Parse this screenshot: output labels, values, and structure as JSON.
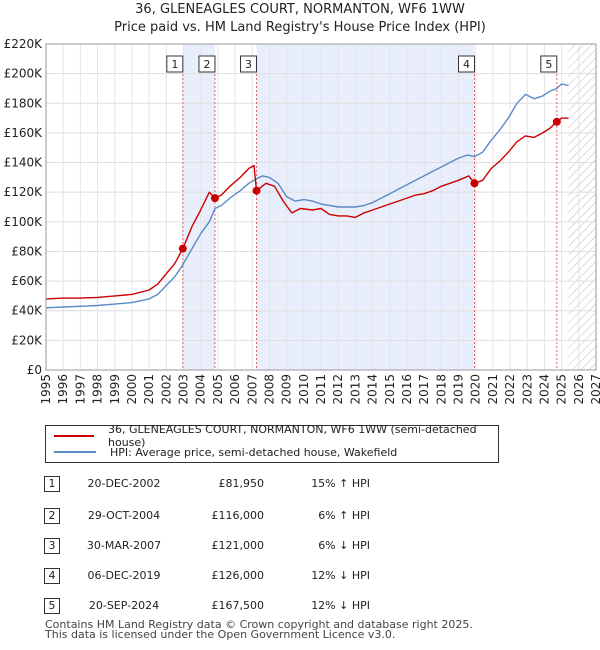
{
  "title": "36, GLENEAGLES COURT, NORMANTON, WF6 1WW",
  "subtitle": "Price paid vs. HM Land Registry's House Price Index (HPI)",
  "colors": {
    "property": "#cc0000",
    "hpi": "#5b8ac6",
    "shade": "#e8eefb",
    "vline": "#e06666"
  },
  "chart_data": {
    "type": "line",
    "xlim": [
      1995,
      2027
    ],
    "ylim": [
      0,
      220000
    ],
    "xticks": [
      1995,
      1996,
      1997,
      1998,
      1999,
      2000,
      2001,
      2002,
      2003,
      2004,
      2005,
      2006,
      2007,
      2008,
      2009,
      2010,
      2011,
      2012,
      2013,
      2014,
      2015,
      2016,
      2017,
      2018,
      2019,
      2020,
      2021,
      2022,
      2023,
      2024,
      2025,
      2026,
      2027
    ],
    "yticks": [
      0,
      20000,
      40000,
      60000,
      80000,
      100000,
      120000,
      140000,
      160000,
      180000,
      200000,
      220000
    ],
    "ytick_labels": [
      "£0",
      "£20K",
      "£40K",
      "£60K",
      "£80K",
      "£100K",
      "£120K",
      "£140K",
      "£160K",
      "£180K",
      "£200K",
      "£220K"
    ],
    "forecast_start": 2025.4,
    "series": [
      {
        "name": "36, GLENEAGLES COURT, NORMANTON, WF6 1WW (semi-detached house)",
        "points": [
          [
            1995.0,
            48000
          ],
          [
            1996.0,
            48500
          ],
          [
            1997.0,
            48500
          ],
          [
            1998.0,
            49000
          ],
          [
            1999.0,
            50000
          ],
          [
            2000.0,
            51000
          ],
          [
            2001.0,
            54000
          ],
          [
            2001.5,
            58000
          ],
          [
            2002.0,
            65000
          ],
          [
            2002.5,
            72000
          ],
          [
            2002.96,
            81950
          ],
          [
            2003.5,
            97000
          ],
          [
            2004.0,
            108000
          ],
          [
            2004.5,
            120000
          ],
          [
            2004.83,
            116000
          ],
          [
            2005.2,
            118000
          ],
          [
            2005.7,
            124000
          ],
          [
            2006.3,
            130000
          ],
          [
            2006.8,
            136000
          ],
          [
            2007.1,
            138000
          ],
          [
            2007.25,
            121000
          ],
          [
            2007.8,
            126000
          ],
          [
            2008.3,
            124000
          ],
          [
            2008.8,
            114000
          ],
          [
            2009.3,
            106000
          ],
          [
            2009.8,
            109000
          ],
          [
            2010.5,
            108000
          ],
          [
            2011.0,
            109000
          ],
          [
            2011.5,
            105000
          ],
          [
            2012.0,
            104000
          ],
          [
            2012.5,
            104000
          ],
          [
            2013.0,
            103000
          ],
          [
            2013.5,
            106000
          ],
          [
            2014.0,
            108000
          ],
          [
            2014.5,
            110000
          ],
          [
            2015.0,
            112000
          ],
          [
            2015.5,
            114000
          ],
          [
            2016.0,
            116000
          ],
          [
            2016.5,
            118000
          ],
          [
            2017.0,
            119000
          ],
          [
            2017.5,
            121000
          ],
          [
            2018.0,
            124000
          ],
          [
            2018.5,
            126000
          ],
          [
            2019.0,
            128000
          ],
          [
            2019.6,
            131000
          ],
          [
            2019.93,
            126000
          ],
          [
            2020.4,
            128000
          ],
          [
            2020.9,
            136000
          ],
          [
            2021.4,
            141000
          ],
          [
            2021.9,
            147000
          ],
          [
            2022.4,
            154000
          ],
          [
            2022.9,
            158000
          ],
          [
            2023.4,
            157000
          ],
          [
            2023.9,
            160000
          ],
          [
            2024.3,
            163000
          ],
          [
            2024.72,
            167500
          ],
          [
            2025.0,
            170000
          ],
          [
            2025.4,
            170000
          ]
        ]
      },
      {
        "name": "HPI: Average price, semi-detached house, Wakefield",
        "points": [
          [
            1995.0,
            42000
          ],
          [
            1996.0,
            42500
          ],
          [
            1997.0,
            43000
          ],
          [
            1998.0,
            43500
          ],
          [
            1999.0,
            44500
          ],
          [
            2000.0,
            45500
          ],
          [
            2001.0,
            48000
          ],
          [
            2001.5,
            51000
          ],
          [
            2002.0,
            57000
          ],
          [
            2002.5,
            63000
          ],
          [
            2002.96,
            71000
          ],
          [
            2003.5,
            82000
          ],
          [
            2004.0,
            92000
          ],
          [
            2004.5,
            100000
          ],
          [
            2004.83,
            109000
          ],
          [
            2005.2,
            111000
          ],
          [
            2005.7,
            116000
          ],
          [
            2006.3,
            121000
          ],
          [
            2006.8,
            126000
          ],
          [
            2007.25,
            129000
          ],
          [
            2007.6,
            131000
          ],
          [
            2008.0,
            130000
          ],
          [
            2008.5,
            126000
          ],
          [
            2009.0,
            117000
          ],
          [
            2009.5,
            114000
          ],
          [
            2010.0,
            115000
          ],
          [
            2010.5,
            114000
          ],
          [
            2011.0,
            112000
          ],
          [
            2011.5,
            111000
          ],
          [
            2012.0,
            110000
          ],
          [
            2012.5,
            110000
          ],
          [
            2013.0,
            110000
          ],
          [
            2013.5,
            111000
          ],
          [
            2014.0,
            113000
          ],
          [
            2014.5,
            116000
          ],
          [
            2015.0,
            119000
          ],
          [
            2015.5,
            122000
          ],
          [
            2016.0,
            125000
          ],
          [
            2016.5,
            128000
          ],
          [
            2017.0,
            131000
          ],
          [
            2017.5,
            134000
          ],
          [
            2018.0,
            137000
          ],
          [
            2018.5,
            140000
          ],
          [
            2019.0,
            143000
          ],
          [
            2019.5,
            145000
          ],
          [
            2019.93,
            144000
          ],
          [
            2020.4,
            147000
          ],
          [
            2020.9,
            155000
          ],
          [
            2021.4,
            162000
          ],
          [
            2021.9,
            170000
          ],
          [
            2022.4,
            180000
          ],
          [
            2022.9,
            186000
          ],
          [
            2023.4,
            183000
          ],
          [
            2023.9,
            185000
          ],
          [
            2024.3,
            188000
          ],
          [
            2024.72,
            190000
          ],
          [
            2025.0,
            193000
          ],
          [
            2025.4,
            192000
          ]
        ]
      }
    ],
    "sales": [
      {
        "n": "1",
        "x": 2002.96,
        "y": 81950
      },
      {
        "n": "2",
        "x": 2004.83,
        "y": 116000
      },
      {
        "n": "3",
        "x": 2007.25,
        "y": 121000
      },
      {
        "n": "4",
        "x": 2019.93,
        "y": 126000
      },
      {
        "n": "5",
        "x": 2024.72,
        "y": 167500
      }
    ],
    "shaded_periods": [
      [
        2002.96,
        2004.83
      ],
      [
        2007.25,
        2019.93
      ]
    ]
  },
  "legend": {
    "property": "36, GLENEAGLES COURT, NORMANTON, WF6 1WW (semi-detached house)",
    "hpi": "HPI: Average price, semi-detached house, Wakefield"
  },
  "transactions": [
    {
      "n": "1",
      "date": "20-DEC-2002",
      "price": "£81,950",
      "pct": "15% ↑ HPI"
    },
    {
      "n": "2",
      "date": "29-OCT-2004",
      "price": "£116,000",
      "pct": "6% ↑ HPI"
    },
    {
      "n": "3",
      "date": "30-MAR-2007",
      "price": "£121,000",
      "pct": "6% ↓ HPI"
    },
    {
      "n": "4",
      "date": "06-DEC-2019",
      "price": "£126,000",
      "pct": "12% ↓ HPI"
    },
    {
      "n": "5",
      "date": "20-SEP-2024",
      "price": "£167,500",
      "pct": "12% ↓ HPI"
    }
  ],
  "footer": {
    "line1": "Contains HM Land Registry data © Crown copyright and database right 2025.",
    "line2": "This data is licensed under the Open Government Licence v3.0."
  }
}
